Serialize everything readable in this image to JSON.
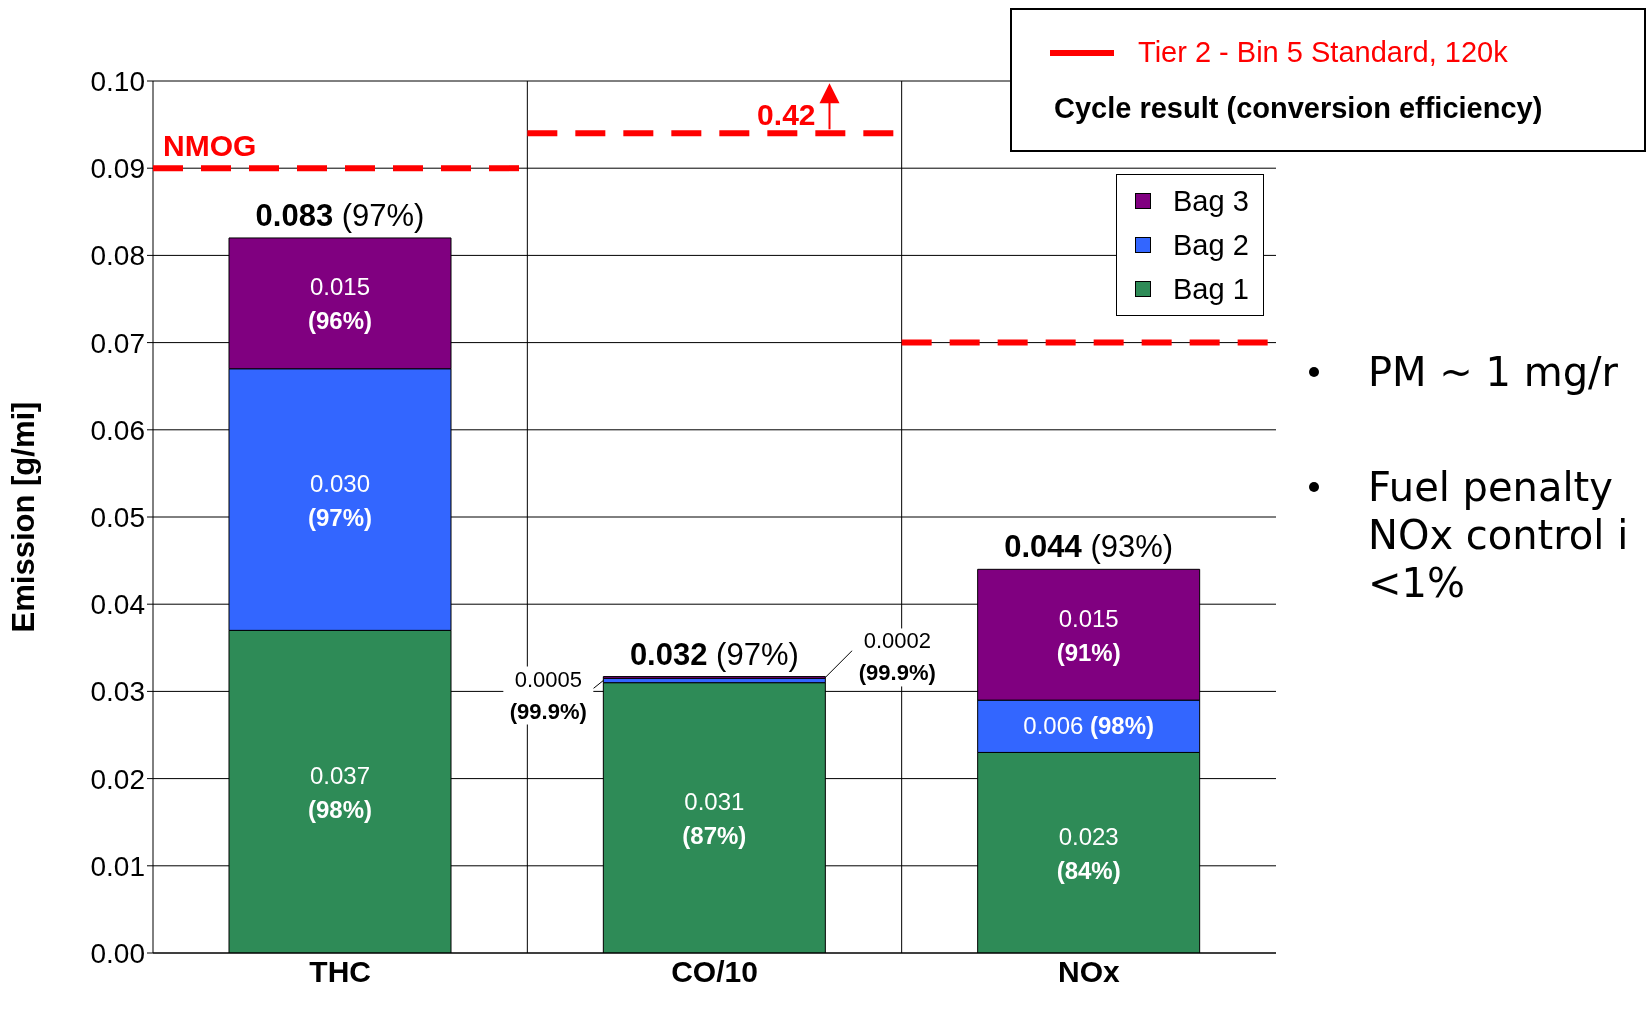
{
  "chart_data": {
    "type": "bar",
    "stacked": true,
    "ylabel": "Emission [g/mi]",
    "categories": [
      "THC",
      "CO/10",
      "NOx"
    ],
    "series": [
      {
        "name": "Bag 1",
        "color": "#2e8b57",
        "values": [
          0.037,
          0.031,
          0.023
        ],
        "value_labels": [
          "0.037 (98%)",
          "0.031 (87%)",
          "0.023 (84%)"
        ]
      },
      {
        "name": "Bag 2",
        "color": "#3366ff",
        "values": [
          0.03,
          0.0005,
          0.006
        ],
        "value_labels": [
          "0.030 (97%)",
          "0.0005 (99.9%)",
          "0.006 (98%)"
        ]
      },
      {
        "name": "Bag 3",
        "color": "#800080",
        "values": [
          0.015,
          0.0002,
          0.015
        ],
        "value_labels": [
          "0.015 (96%)",
          "0.0002 (99.9%)",
          "0.015 (91%)"
        ]
      }
    ],
    "totals": [
      "0.083 (97%)",
      "0.032 (97%)",
      "0.044 (93%)"
    ],
    "ylim": [
      0,
      0.1
    ],
    "yticks": [
      {
        "value": 0,
        "label": "0.00"
      },
      {
        "value": 0.01,
        "label": "0.01"
      },
      {
        "value": 0.02,
        "label": "0.02"
      },
      {
        "value": 0.03,
        "label": "0.03"
      },
      {
        "value": 0.04,
        "label": "0.04"
      },
      {
        "value": 0.05,
        "label": "0.05"
      },
      {
        "value": 0.06,
        "label": "0.06"
      },
      {
        "value": 0.07,
        "label": "0.07"
      },
      {
        "value": 0.08,
        "label": "0.08"
      },
      {
        "value": 0.09,
        "label": "0.09"
      },
      {
        "value": 0.1,
        "label": "0.10"
      }
    ],
    "grid": true,
    "legend": "top right",
    "ref_lines": [
      {
        "axis": "y",
        "value": 0.09,
        "label": "NMOG",
        "color": "#ff0000",
        "line_style": "dashed"
      },
      {
        "axis": "y",
        "value": 0.094,
        "color": "#ff0000",
        "line_style": "dashed"
      },
      {
        "axis": "y",
        "value": 0.07,
        "color": "#ff0000",
        "line_style": "dashed"
      }
    ],
    "annotations": [
      "Tier 2 - Bin 5 Standard, 120k",
      "Cycle result (conversion efficiency)",
      {
        "text": "0.42",
        "x": "CO/10",
        "y": 0.094
      },
      "PM ~ 1 mg/r",
      "Fuel penalty\nNOx control i\n<1%"
    ]
  }
}
